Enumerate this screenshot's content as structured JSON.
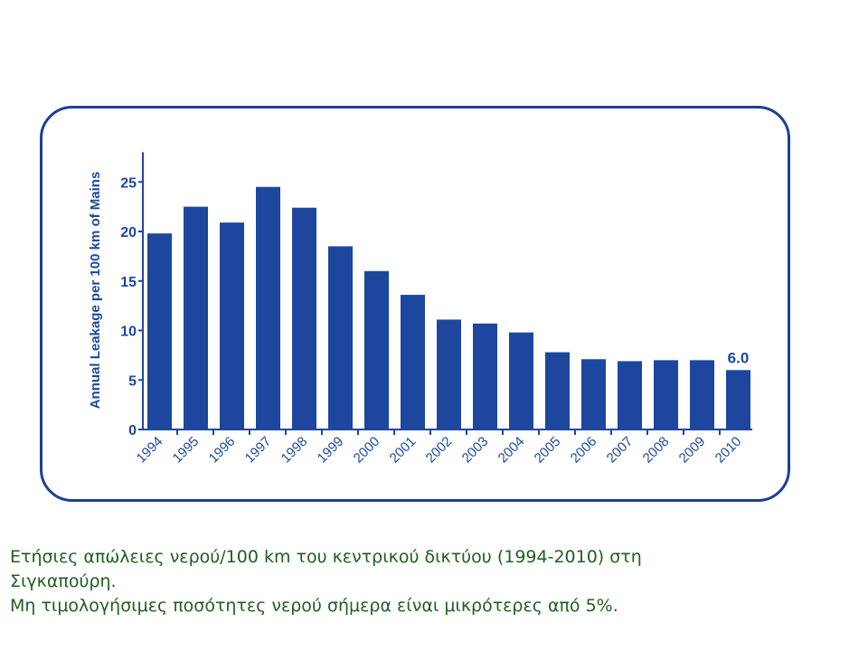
{
  "chart_data": {
    "type": "bar",
    "ylabel": "Annual Leakage per 100 km of Mains",
    "categories": [
      "1994",
      "1995",
      "1996",
      "1997",
      "1998",
      "1999",
      "2000",
      "2001",
      "2002",
      "2003",
      "2004",
      "2005",
      "2006",
      "2007",
      "2008",
      "2009",
      "2010"
    ],
    "values": [
      19.8,
      22.5,
      20.9,
      24.5,
      22.4,
      18.5,
      16.0,
      13.6,
      11.1,
      10.7,
      9.8,
      7.8,
      7.1,
      6.9,
      7.0,
      7.0,
      6.0
    ],
    "value_labels": [
      {
        "category": "2010",
        "text": "6.0"
      }
    ],
    "yticks": [
      "0",
      "5",
      "10",
      "15",
      "20",
      "25"
    ],
    "ylim": [
      0,
      28
    ],
    "grid": false,
    "bar_color": "#1d479e",
    "axis_color": "#1d479e"
  },
  "caption": {
    "line1": "Ετήσιες απώλειες νερού/100 km του κεντρικού δικτύου (1994-2010) στη",
    "line2": "Σιγκαπούρη.",
    "line3": "Μη τιμολογήσιμες ποσότητες νερού σήμερα είναι μικρότερες από 5%.",
    "color": "#1f5e22"
  }
}
